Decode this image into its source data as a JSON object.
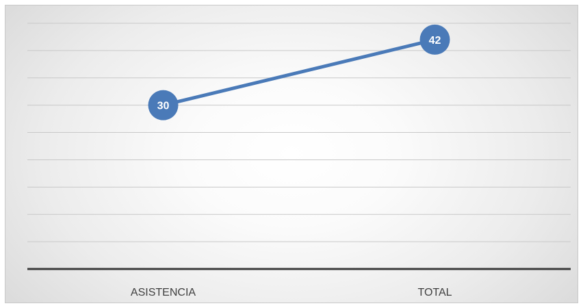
{
  "chart_data": {
    "type": "line",
    "title": "",
    "xlabel": "",
    "ylabel": "",
    "categories": [
      "ASISTENCIA",
      "TOTAL"
    ],
    "series": [
      {
        "values": [
          30,
          42
        ],
        "color": "#4a7ab8",
        "data_labels": true
      }
    ],
    "ylim": [
      0,
      45
    ],
    "grid": true,
    "legend": "none",
    "colors": {
      "line": "#4a7ab8",
      "marker_fill": "#4a7ab8",
      "marker_text": "#ffffff",
      "gridline": "#c8c8c8",
      "axis": "#3a3a3a",
      "tick_text": "#404040"
    }
  }
}
